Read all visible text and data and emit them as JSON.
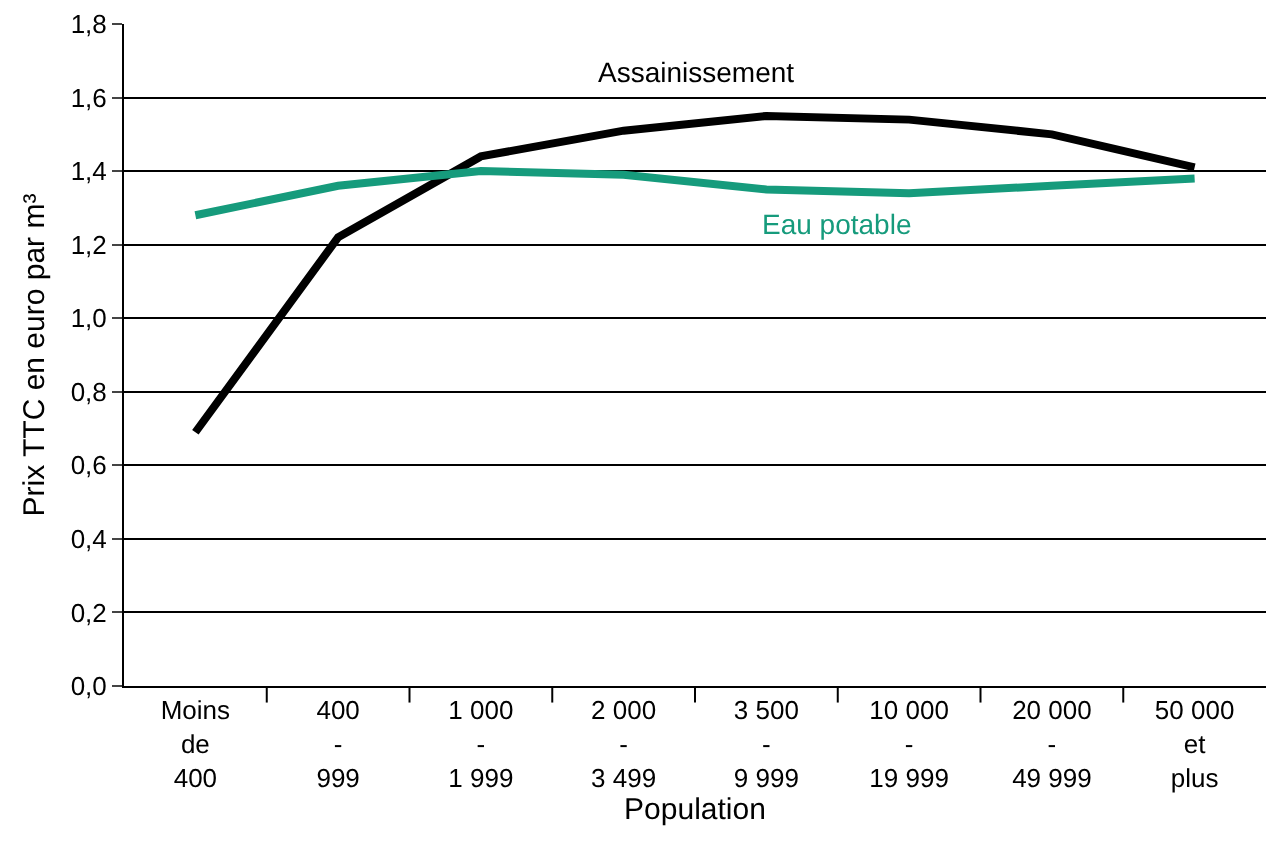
{
  "chart_data": {
    "type": "line",
    "xlabel": "Population",
    "ylabel": "Prix TTC en euro par m³",
    "categories": [
      "Moins\nde\n400",
      "400\n-\n999",
      "1 000\n-\n1 999",
      "2 000\n-\n3 499",
      "3 500\n-\n9 999",
      "10 000\n-\n19 999",
      "20 000\n-\n49 999",
      "50 000\net\nplus"
    ],
    "series": [
      {
        "name": "Assainissement",
        "color": "#000000",
        "values": [
          0.69,
          1.22,
          1.44,
          1.51,
          1.55,
          1.54,
          1.5,
          1.41
        ]
      },
      {
        "name": "Eau potable",
        "color": "#169b7c",
        "values": [
          1.28,
          1.36,
          1.4,
          1.39,
          1.35,
          1.34,
          1.36,
          1.38
        ]
      }
    ],
    "ylim": [
      0,
      1.8
    ],
    "yticks": [
      {
        "value": 0,
        "label": "0,0"
      },
      {
        "value": 0.2,
        "label": "0,2"
      },
      {
        "value": 0.4,
        "label": "0,4"
      },
      {
        "value": 0.6,
        "label": "0,6"
      },
      {
        "value": 0.8,
        "label": "0,8"
      },
      {
        "value": 1.0,
        "label": "1,0"
      },
      {
        "value": 1.2,
        "label": "1,2"
      },
      {
        "value": 1.4,
        "label": "1,4"
      },
      {
        "value": 1.6,
        "label": "1,6"
      },
      {
        "value": 1.8,
        "label": "1,8"
      }
    ],
    "grid": "y",
    "legend": false,
    "marker": "none",
    "line_style": "solid"
  }
}
